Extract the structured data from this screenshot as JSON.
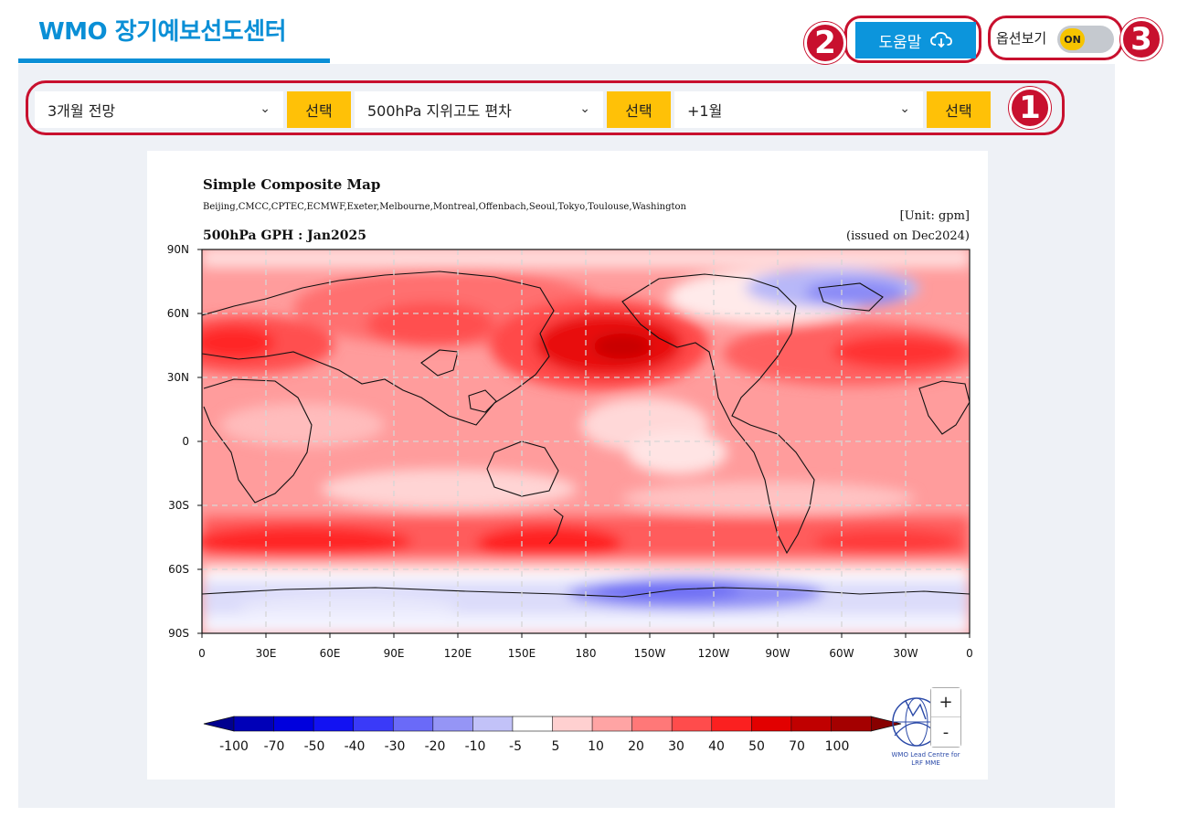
{
  "header": {
    "app_title": "WMO 장기예보선도센터",
    "help_label": "도움말",
    "options_label": "옵션보기",
    "toggle_state": "ON"
  },
  "annotations": [
    "1",
    "2",
    "3"
  ],
  "filters": [
    {
      "value": "3개월 전망",
      "button": "선택"
    },
    {
      "value": "500hPa 지위고도 편차",
      "button": "선택"
    },
    {
      "value": "+1월",
      "button": "선택"
    }
  ],
  "map": {
    "title": "Simple Composite Map",
    "centers": "Beijing,CMCC,CPTEC,ECMWF,Exeter,Melbourne,Montreal,Offenbach,Seoul,Tokyo,Toulouse,Washington",
    "unit": "[Unit: gpm]",
    "subtitle": "500hPa GPH : Jan2025",
    "issued": "(issued on Dec2024)",
    "y_ticks": [
      "90N",
      "60N",
      "30N",
      "0",
      "30S",
      "60S",
      "90S"
    ],
    "x_ticks": [
      "0",
      "30E",
      "60E",
      "90E",
      "120E",
      "150E",
      "180",
      "150W",
      "120W",
      "90W",
      "60W",
      "30W",
      "0"
    ],
    "colorbar_labels": [
      "-100",
      "-70",
      "-50",
      "-40",
      "-30",
      "-20",
      "-10",
      "-5",
      "5",
      "10",
      "20",
      "30",
      "40",
      "50",
      "70",
      "100"
    ],
    "colorbar_colors": [
      "#0000b8",
      "#0000dd",
      "#1212f2",
      "#3a3af8",
      "#6a6af8",
      "#9595f6",
      "#c2c2f8",
      "#ffffff",
      "#ffd0d0",
      "#ffa4a4",
      "#ff7878",
      "#ff4c4c",
      "#fb2020",
      "#e20000",
      "#c00000",
      "#a40000"
    ],
    "logo_line1": "WMO Lead Centre for",
    "logo_line2": "LRF MME"
  },
  "zoom": {
    "plus": "+",
    "minus": "-"
  }
}
